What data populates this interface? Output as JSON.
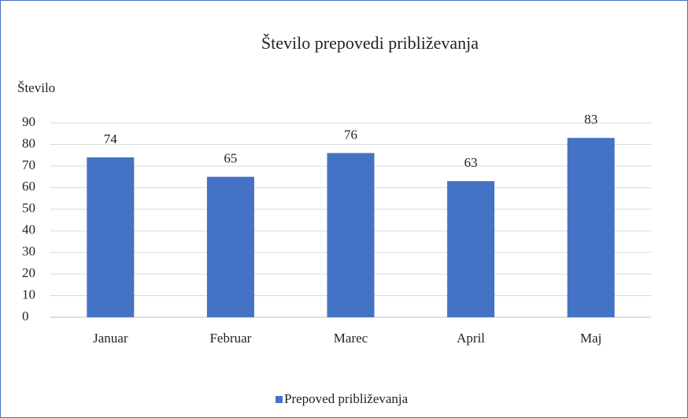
{
  "chart_data": {
    "type": "bar",
    "title": "Število prepovedi približevanja",
    "y_label": "Število",
    "categories": [
      "Januar",
      "Februar",
      "Marec",
      "April",
      "Maj"
    ],
    "series": [
      {
        "name": "Prepoved približevanja",
        "color": "#4472c4",
        "values": [
          74,
          65,
          76,
          63,
          83
        ]
      }
    ],
    "ylim": [
      0,
      90
    ],
    "yticks": [
      0,
      10,
      20,
      30,
      40,
      50,
      60,
      70,
      80,
      90
    ],
    "grid": true,
    "legend": "bottom"
  }
}
